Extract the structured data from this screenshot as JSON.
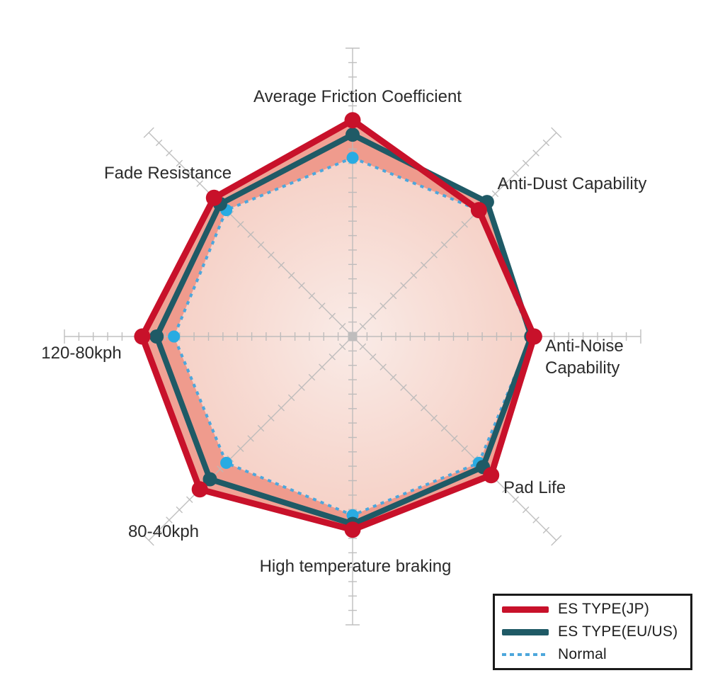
{
  "chart_data": {
    "type": "radar",
    "axes": [
      {
        "label": "Average Friction Coefficient"
      },
      {
        "label": "Anti-Dust Capability"
      },
      {
        "label": "Anti-Noise Capability",
        "lines": [
          "Anti-Noise",
          "Capability"
        ]
      },
      {
        "label": "Pad Life"
      },
      {
        "label": "High temperature braking"
      },
      {
        "label": "80-40kph"
      },
      {
        "label": "120-80kph"
      },
      {
        "label": "Fade Resistance"
      }
    ],
    "scale": {
      "min": 0,
      "max": 10,
      "divisions": 20
    },
    "series": [
      {
        "name": "ES TYPE(JP)",
        "style": "solid",
        "color": "#c8112a",
        "values": [
          7.5,
          6.2,
          6.3,
          6.8,
          6.7,
          7.5,
          7.3,
          6.8
        ]
      },
      {
        "name": "ES TYPE(EU/US)",
        "style": "solid",
        "color": "#1f5a66",
        "values": [
          7.0,
          6.6,
          6.2,
          6.4,
          6.5,
          7.0,
          6.8,
          6.5
        ]
      },
      {
        "name": "Normal",
        "style": "dashed",
        "color": "#4da7dc",
        "values": [
          6.2,
          6.2,
          6.2,
          6.2,
          6.2,
          6.2,
          6.2,
          6.2
        ]
      }
    ],
    "legend_position": "bottom-right",
    "grid": true
  },
  "colors": {
    "band_fill": "#ef9a8c",
    "inner_fill_center": "#faeeea",
    "inner_fill_edge": "#f6d6cc",
    "normal_dot": "#29abe2",
    "axis": "#b9b9b9",
    "label": "#2b2b2b",
    "background": "#ffffff",
    "legend_border": "#1a1a1a"
  }
}
